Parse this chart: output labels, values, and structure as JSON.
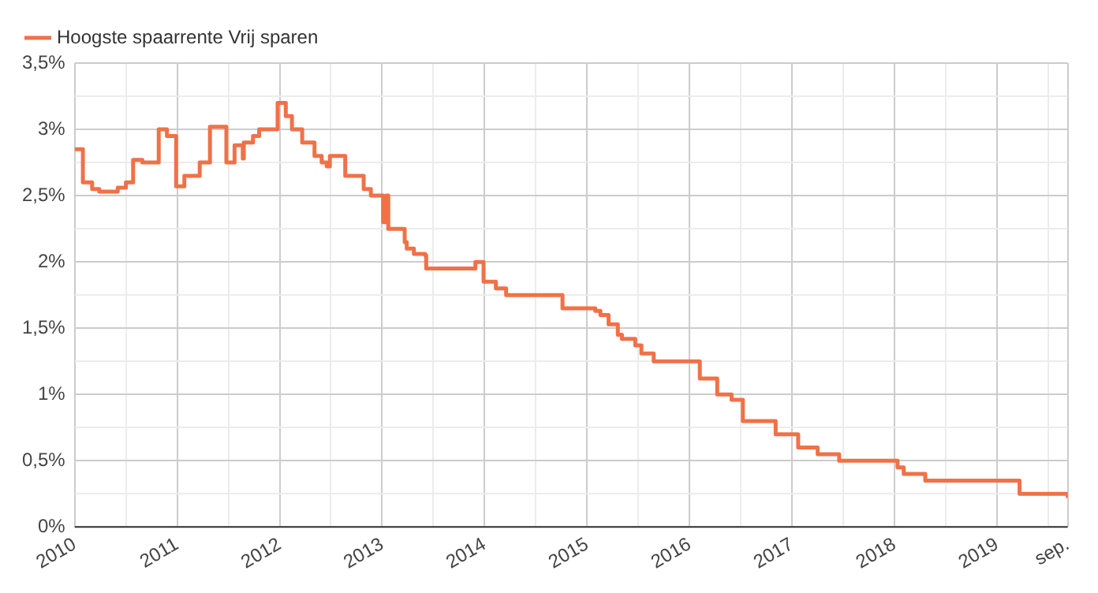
{
  "chart_data": {
    "type": "step",
    "x": [
      2010.0,
      2010.08,
      2010.17,
      2010.24,
      2010.42,
      2010.5,
      2010.57,
      2010.66,
      2010.82,
      2010.9,
      2010.99,
      2011.07,
      2011.22,
      2011.32,
      2011.48,
      2011.56,
      2011.64,
      2011.65,
      2011.74,
      2011.8,
      2011.98,
      2012.06,
      2012.12,
      2012.22,
      2012.34,
      2012.41,
      2012.46,
      2012.49,
      2012.64,
      2012.82,
      2012.89,
      2013.01,
      2013.04,
      2013.06,
      2013.22,
      2013.24,
      2013.31,
      2013.42,
      2013.43,
      2013.91,
      2013.99,
      2014.11,
      2014.21,
      2014.76,
      2015.08,
      2015.13,
      2015.21,
      2015.3,
      2015.34,
      2015.47,
      2015.53,
      2015.65,
      2016.1,
      2016.27,
      2016.41,
      2016.52,
      2016.84,
      2017.06,
      2017.25,
      2017.46,
      2018.03,
      2018.09,
      2018.3,
      2019.22,
      2019.69
    ],
    "series": [
      {
        "name": "Hoogste spaarrente Vrij sparen",
        "color": "#f07148",
        "values": [
          2.85,
          2.6,
          2.55,
          2.53,
          2.56,
          2.6,
          2.77,
          2.75,
          3.0,
          2.95,
          2.57,
          2.65,
          2.75,
          3.02,
          2.75,
          2.88,
          2.78,
          2.9,
          2.95,
          3.0,
          3.2,
          3.1,
          3.0,
          2.9,
          2.8,
          2.75,
          2.72,
          2.8,
          2.65,
          2.55,
          2.5,
          2.3,
          2.5,
          2.25,
          2.15,
          2.1,
          2.06,
          2.05,
          1.95,
          2.0,
          1.85,
          1.8,
          1.75,
          1.65,
          1.63,
          1.6,
          1.53,
          1.45,
          1.42,
          1.37,
          1.31,
          1.25,
          1.12,
          1.0,
          0.96,
          0.8,
          0.7,
          0.6,
          0.55,
          0.5,
          0.45,
          0.4,
          0.35,
          0.25,
          0.22
        ]
      }
    ],
    "xlim": [
      2010,
      2019.69
    ],
    "xticks": [
      {
        "value": 2010,
        "label": "2010"
      },
      {
        "value": 2010.5,
        "label": null
      },
      {
        "value": 2011,
        "label": "2011"
      },
      {
        "value": 2011.5,
        "label": null
      },
      {
        "value": 2012,
        "label": "2012"
      },
      {
        "value": 2012.5,
        "label": null
      },
      {
        "value": 2013,
        "label": "2013"
      },
      {
        "value": 2013.5,
        "label": null
      },
      {
        "value": 2014,
        "label": "2014"
      },
      {
        "value": 2014.5,
        "label": null
      },
      {
        "value": 2015,
        "label": "2015"
      },
      {
        "value": 2015.5,
        "label": null
      },
      {
        "value": 2016,
        "label": "2016"
      },
      {
        "value": 2016.5,
        "label": null
      },
      {
        "value": 2017,
        "label": "2017"
      },
      {
        "value": 2017.5,
        "label": null
      },
      {
        "value": 2018,
        "label": "2018"
      },
      {
        "value": 2018.5,
        "label": null
      },
      {
        "value": 2019,
        "label": "2019"
      },
      {
        "value": 2019.5,
        "label": null
      },
      {
        "value": 2019.69,
        "label": "sep."
      }
    ],
    "ylim": [
      0,
      3.5
    ],
    "yticks": [
      {
        "value": 0,
        "label": "0%"
      },
      {
        "value": 0.25,
        "label": null
      },
      {
        "value": 0.5,
        "label": "0,5%"
      },
      {
        "value": 0.75,
        "label": null
      },
      {
        "value": 1,
        "label": "1%"
      },
      {
        "value": 1.25,
        "label": null
      },
      {
        "value": 1.5,
        "label": "1,5%"
      },
      {
        "value": 1.75,
        "label": null
      },
      {
        "value": 2,
        "label": "2%"
      },
      {
        "value": 2.25,
        "label": null
      },
      {
        "value": 2.5,
        "label": "2,5%"
      },
      {
        "value": 2.75,
        "label": null
      },
      {
        "value": 3,
        "label": "3%"
      },
      {
        "value": 3.25,
        "label": null
      },
      {
        "value": 3.5,
        "label": "3,5%"
      }
    ],
    "grid": true,
    "legend": "top left",
    "marker": "none",
    "line_style": "solid"
  }
}
